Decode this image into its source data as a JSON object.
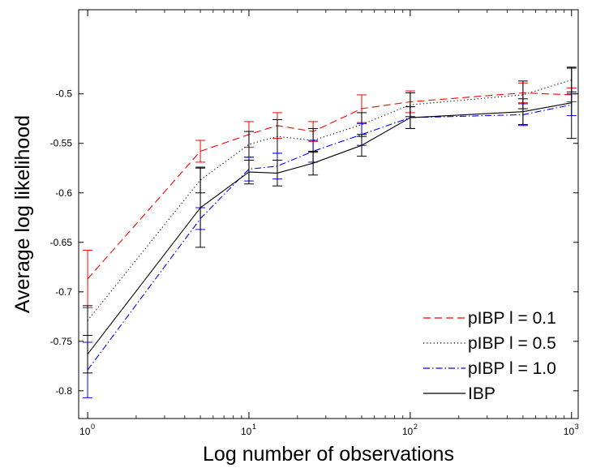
{
  "chart_data": {
    "type": "line",
    "xlabel": "Log number of observations",
    "ylabel": "Average log likelihood",
    "xscale": "log",
    "xlim": [
      0.88,
      1100
    ],
    "ylim": [
      -0.828,
      -0.415
    ],
    "x_ticks": [
      {
        "value": 1,
        "base": "10",
        "exp": "0"
      },
      {
        "value": 10,
        "base": "10",
        "exp": "1"
      },
      {
        "value": 100,
        "base": "10",
        "exp": "2"
      },
      {
        "value": 1000,
        "base": "10",
        "exp": "3"
      }
    ],
    "y_ticks": [
      {
        "value": -0.8,
        "label": "-0.8"
      },
      {
        "value": -0.75,
        "label": "-0.75"
      },
      {
        "value": -0.7,
        "label": "-0.7"
      },
      {
        "value": -0.65,
        "label": "-0.65"
      },
      {
        "value": -0.6,
        "label": "-0.6"
      },
      {
        "value": -0.55,
        "label": "-0.55"
      },
      {
        "value": -0.5,
        "label": "-0.5"
      }
    ],
    "grid": false,
    "legend_position": "bottom-right",
    "x": [
      1,
      5,
      10,
      15,
      25,
      50,
      100,
      500,
      1000
    ],
    "series": [
      {
        "name": "pIBP l = 0.1",
        "color": "#ff0000",
        "dash": "dashed",
        "values": [
          -0.687,
          -0.558,
          -0.541,
          -0.532,
          -0.538,
          -0.515,
          -0.508,
          -0.499,
          -0.501
        ],
        "errors": [
          0.029,
          0.011,
          0.013,
          0.013,
          0.01,
          0.014,
          0.011,
          0.01,
          0.007
        ]
      },
      {
        "name": "pIBP l = 0.5",
        "color": "#000000",
        "dash": "dotted",
        "values": [
          -0.729,
          -0.587,
          -0.551,
          -0.543,
          -0.547,
          -0.531,
          -0.511,
          -0.501,
          -0.486
        ],
        "errors": [
          0.015,
          0.013,
          0.013,
          0.017,
          0.012,
          0.012,
          0.012,
          0.014,
          0.012
        ]
      },
      {
        "name": "pIBP l = 1.0",
        "color": "#0000ff",
        "dash": "dashdot",
        "values": [
          -0.779,
          -0.626,
          -0.576,
          -0.573,
          -0.558,
          -0.541,
          -0.524,
          -0.521,
          -0.511
        ],
        "errors": [
          0.028,
          0.011,
          0.012,
          0.013,
          0.011,
          0.011,
          0.011,
          0.011,
          0.011
        ]
      },
      {
        "name": "IBP",
        "color": "#000000",
        "dash": "solid",
        "values": [
          -0.763,
          -0.615,
          -0.579,
          -0.58,
          -0.57,
          -0.552,
          -0.524,
          -0.518,
          -0.509
        ],
        "errors": [
          0.019,
          0.04,
          0.012,
          0.013,
          0.012,
          0.011,
          0.011,
          0.013,
          0.036
        ]
      }
    ]
  }
}
